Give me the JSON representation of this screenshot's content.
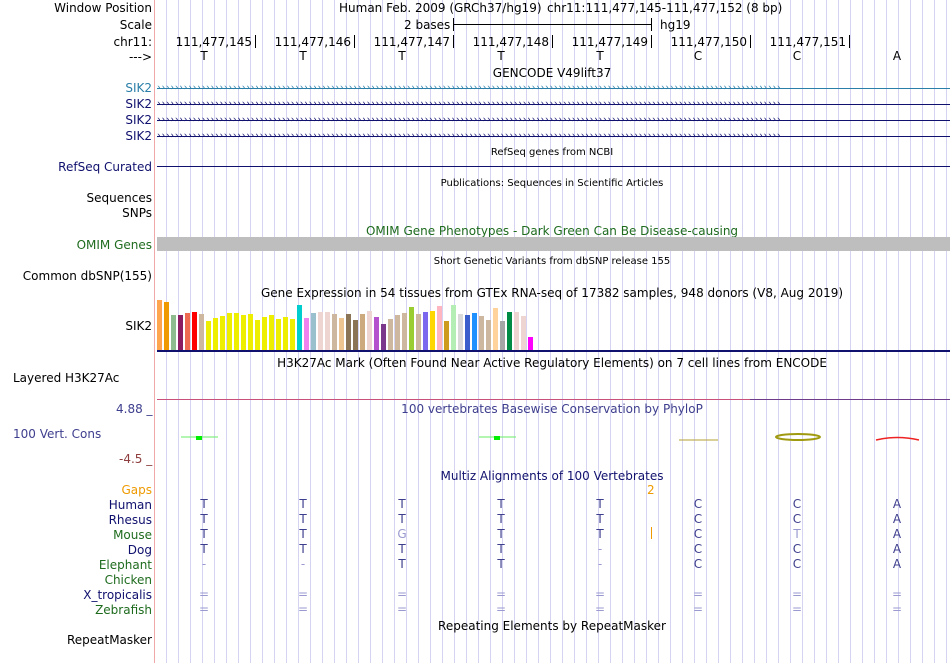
{
  "header": {
    "window_position_label": "Window Position",
    "assembly": "Human Feb. 2009 (GRCh37/hg19)",
    "position": "chr11:111,477,145-111,477,152 (8 bp)",
    "scale_label": "Scale",
    "scale_text": "2 bases",
    "scale_db": "hg19",
    "chrom_label": "chr11:",
    "strand_label": "--->",
    "coords": [
      "111,477,145",
      "111,477,146",
      "111,477,147",
      "111,477,148",
      "111,477,149",
      "111,477,150",
      "111,477,151"
    ],
    "bases": [
      "T",
      "T",
      "T",
      "T",
      "T",
      "C",
      "C",
      "A"
    ]
  },
  "tracks": {
    "gencode": {
      "title": "GENCODE V49lift37",
      "genes": [
        {
          "label": "SIK2",
          "color": "#2a7fa8"
        },
        {
          "label": "SIK2",
          "color": "#10106e"
        },
        {
          "label": "SIK2",
          "color": "#10106e"
        },
        {
          "label": "SIK2",
          "color": "#10106e"
        }
      ]
    },
    "refseq": {
      "label": "RefSeq Curated",
      "title": "RefSeq genes from NCBI",
      "color": "#10106e"
    },
    "publications": {
      "title": "Publications: Sequences in Scientific Articles",
      "label_line1": "Sequences",
      "label_line2": "SNPs"
    },
    "omim": {
      "title": "OMIM Gene Phenotypes - Dark Green Can Be Disease-causing",
      "label": "OMIM Genes",
      "color": "#1e6b1e",
      "bar_color": "#bebebe"
    },
    "dbsnp": {
      "title": "Short Genetic Variants from dbSNP release 155",
      "label": "Common dbSNP(155)"
    },
    "gtex": {
      "title": "Gene Expression in 54 tissues from GTEx RNA-seq of 17382 samples, 948 donors (V8, Aug 2019)",
      "label": "SIK2",
      "bars": [
        {
          "v": 1.0,
          "c": "#ffa54f"
        },
        {
          "v": 0.96,
          "c": "#ee9a00"
        },
        {
          "v": 0.7,
          "c": "#8fbc8f"
        },
        {
          "v": 0.7,
          "c": "#8b1c62"
        },
        {
          "v": 0.74,
          "c": "#ee6a50"
        },
        {
          "v": 0.76,
          "c": "#ff0000"
        },
        {
          "v": 0.72,
          "c": "#cdb79e"
        },
        {
          "v": 0.58,
          "c": "#eeee00"
        },
        {
          "v": 0.64,
          "c": "#eeee00"
        },
        {
          "v": 0.68,
          "c": "#eeee00"
        },
        {
          "v": 0.74,
          "c": "#eeee00"
        },
        {
          "v": 0.74,
          "c": "#eeee00"
        },
        {
          "v": 0.7,
          "c": "#eeee00"
        },
        {
          "v": 0.72,
          "c": "#eeee00"
        },
        {
          "v": 0.6,
          "c": "#eeee00"
        },
        {
          "v": 0.66,
          "c": "#eeee00"
        },
        {
          "v": 0.7,
          "c": "#eeee00"
        },
        {
          "v": 0.62,
          "c": "#eeee00"
        },
        {
          "v": 0.66,
          "c": "#eeee00"
        },
        {
          "v": 0.62,
          "c": "#eeee00"
        },
        {
          "v": 0.9,
          "c": "#00cdcd"
        },
        {
          "v": 0.64,
          "c": "#ee82ee"
        },
        {
          "v": 0.74,
          "c": "#9ac0cd"
        },
        {
          "v": 0.76,
          "c": "#eed5d2"
        },
        {
          "v": 0.76,
          "c": "#eed5d2"
        },
        {
          "v": 0.72,
          "c": "#cdb79e"
        },
        {
          "v": 0.64,
          "c": "#eec591"
        },
        {
          "v": 0.72,
          "c": "#8b7355"
        },
        {
          "v": 0.6,
          "c": "#8b7355"
        },
        {
          "v": 0.72,
          "c": "#cdaa7d"
        },
        {
          "v": 0.78,
          "c": "#eed5d2"
        },
        {
          "v": 0.66,
          "c": "#b452cd"
        },
        {
          "v": 0.52,
          "c": "#7a378b"
        },
        {
          "v": 0.62,
          "c": "#cdb79e"
        },
        {
          "v": 0.7,
          "c": "#cdb79e"
        },
        {
          "v": 0.74,
          "c": "#cdb79e"
        },
        {
          "v": 0.86,
          "c": "#9acd32"
        },
        {
          "v": 0.72,
          "c": "#cdb79e"
        },
        {
          "v": 0.76,
          "c": "#7b68ee"
        },
        {
          "v": 0.78,
          "c": "#ffd700"
        },
        {
          "v": 0.88,
          "c": "#ffb6c1"
        },
        {
          "v": 0.58,
          "c": "#cd9b1d"
        },
        {
          "v": 0.9,
          "c": "#b4eeb4"
        },
        {
          "v": 0.72,
          "c": "#d9d9d9"
        },
        {
          "v": 0.7,
          "c": "#3a5fcd"
        },
        {
          "v": 0.74,
          "c": "#1e90ff"
        },
        {
          "v": 0.68,
          "c": "#cdb79e"
        },
        {
          "v": 0.6,
          "c": "#cdb79e"
        },
        {
          "v": 0.84,
          "c": "#ffd39b"
        },
        {
          "v": 0.58,
          "c": "#a6a6a6"
        },
        {
          "v": 0.76,
          "c": "#008b45"
        },
        {
          "v": 0.76,
          "c": "#eed5d2"
        },
        {
          "v": 0.68,
          "c": "#eed5d2"
        },
        {
          "v": 0.26,
          "c": "#ff00ff"
        }
      ]
    },
    "h3k27ac": {
      "title": "H3K27Ac Mark (Often Found Near Active Regulatory Elements) on 7 cell lines from ENCODE",
      "label": "Layered H3K27Ac"
    },
    "phylop": {
      "title": "100 vertebrates Basewise Conservation by PhyloP",
      "label": "100 Vert. Cons",
      "max": "4.88 _",
      "min": "-4.5 _",
      "color": "#3e3e8e",
      "min_color": "#8e3e3e"
    },
    "multiz": {
      "title": "Multiz Alignments of 100 Vertebrates",
      "gaps_label": "Gaps",
      "gap_count": "2",
      "species": [
        {
          "name": "Human",
          "color": "#10106e",
          "bases": [
            "T",
            "T",
            "T",
            "T",
            "T",
            "C",
            "C",
            "A"
          ]
        },
        {
          "name": "Rhesus",
          "color": "#10106e",
          "bases": [
            "T",
            "T",
            "T",
            "T",
            "T",
            "C",
            "C",
            "A"
          ]
        },
        {
          "name": "Mouse",
          "color": "#1e6b1e",
          "bases": [
            "T",
            "T",
            "G",
            "T",
            "T",
            "C",
            "T",
            "A"
          ]
        },
        {
          "name": "Dog",
          "color": "#10106e",
          "bases": [
            "T",
            "T",
            "T",
            "T",
            "-",
            "C",
            "C",
            "A"
          ]
        },
        {
          "name": "Elephant",
          "color": "#1e6b1e",
          "bases": [
            "-",
            "-",
            "T",
            "T",
            "-",
            "C",
            "C",
            "A"
          ]
        },
        {
          "name": "Chicken",
          "color": "#1e6b1e",
          "bases": [
            "",
            "",
            "",
            "",
            "",
            "",
            "",
            ""
          ]
        },
        {
          "name": "X_tropicalis",
          "color": "#10106e",
          "bases": [
            "=",
            "=",
            "=",
            "=",
            "=",
            "=",
            "=",
            "="
          ]
        },
        {
          "name": "Zebrafish",
          "color": "#1e6b1e",
          "bases": [
            "=",
            "=",
            "=",
            "=",
            "=",
            "=",
            "=",
            "="
          ]
        }
      ]
    },
    "repeatmasker": {
      "title": "Repeating Elements by RepeatMasker",
      "label": "RepeatMasker"
    }
  }
}
